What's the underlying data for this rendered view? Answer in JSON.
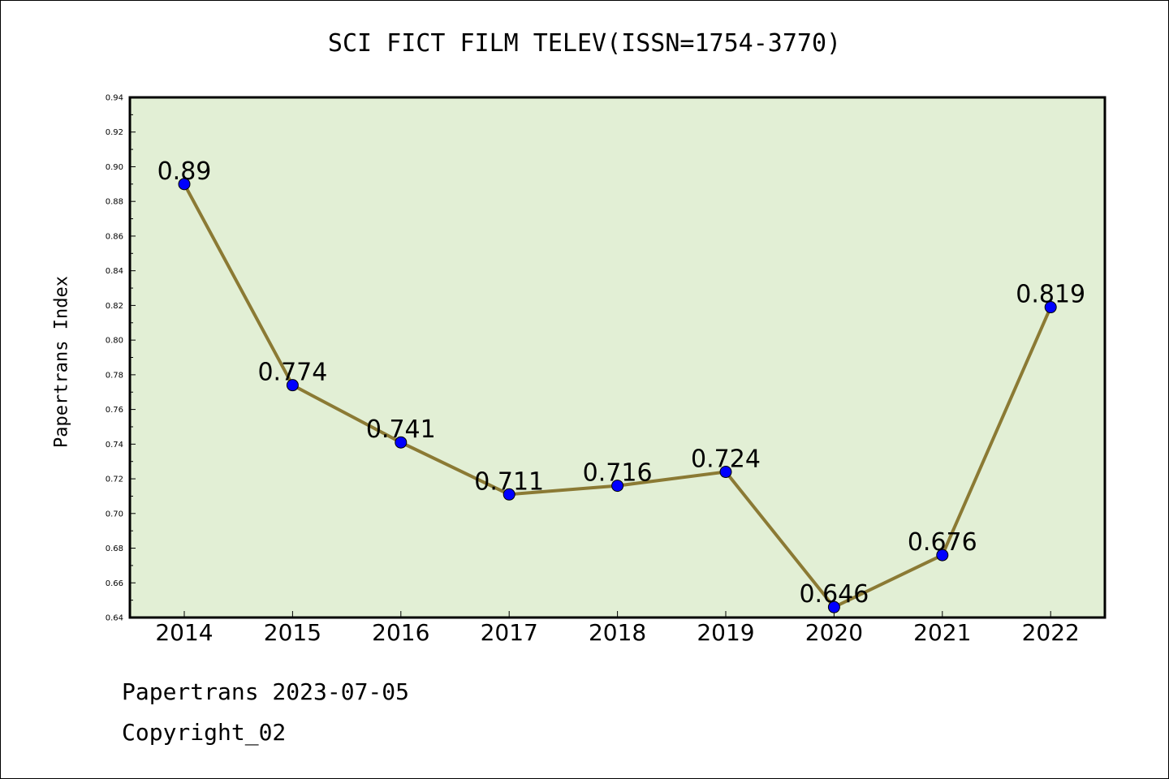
{
  "chart_data": {
    "type": "line",
    "title": "SCI FICT FILM TELEV(ISSN=1754-3770)",
    "ylabel": "Papertrans Index",
    "xlabel": "",
    "categories": [
      "2014",
      "2015",
      "2016",
      "2017",
      "2018",
      "2019",
      "2020",
      "2021",
      "2022"
    ],
    "values": [
      0.89,
      0.774,
      0.741,
      0.711,
      0.716,
      0.724,
      0.646,
      0.676,
      0.819
    ],
    "data_labels": [
      "0.89",
      "0.774",
      "0.741",
      "0.711",
      "0.716",
      "0.724",
      "0.646",
      "0.676",
      "0.819"
    ],
    "ylim": [
      0.64,
      0.94
    ],
    "yticks": [
      "0.64",
      "0.66",
      "0.68",
      "0.70",
      "0.72",
      "0.74",
      "0.76",
      "0.78",
      "0.80",
      "0.82",
      "0.84",
      "0.86",
      "0.88",
      "0.90",
      "0.92",
      "0.94"
    ],
    "grid": false,
    "colors": {
      "plot_background": "#e2efd5",
      "line": "#8b7a34",
      "marker": "#0000ff"
    }
  },
  "footer": {
    "date_line": "Papertrans 2023-07-05",
    "copyright": "Copyright_02"
  }
}
